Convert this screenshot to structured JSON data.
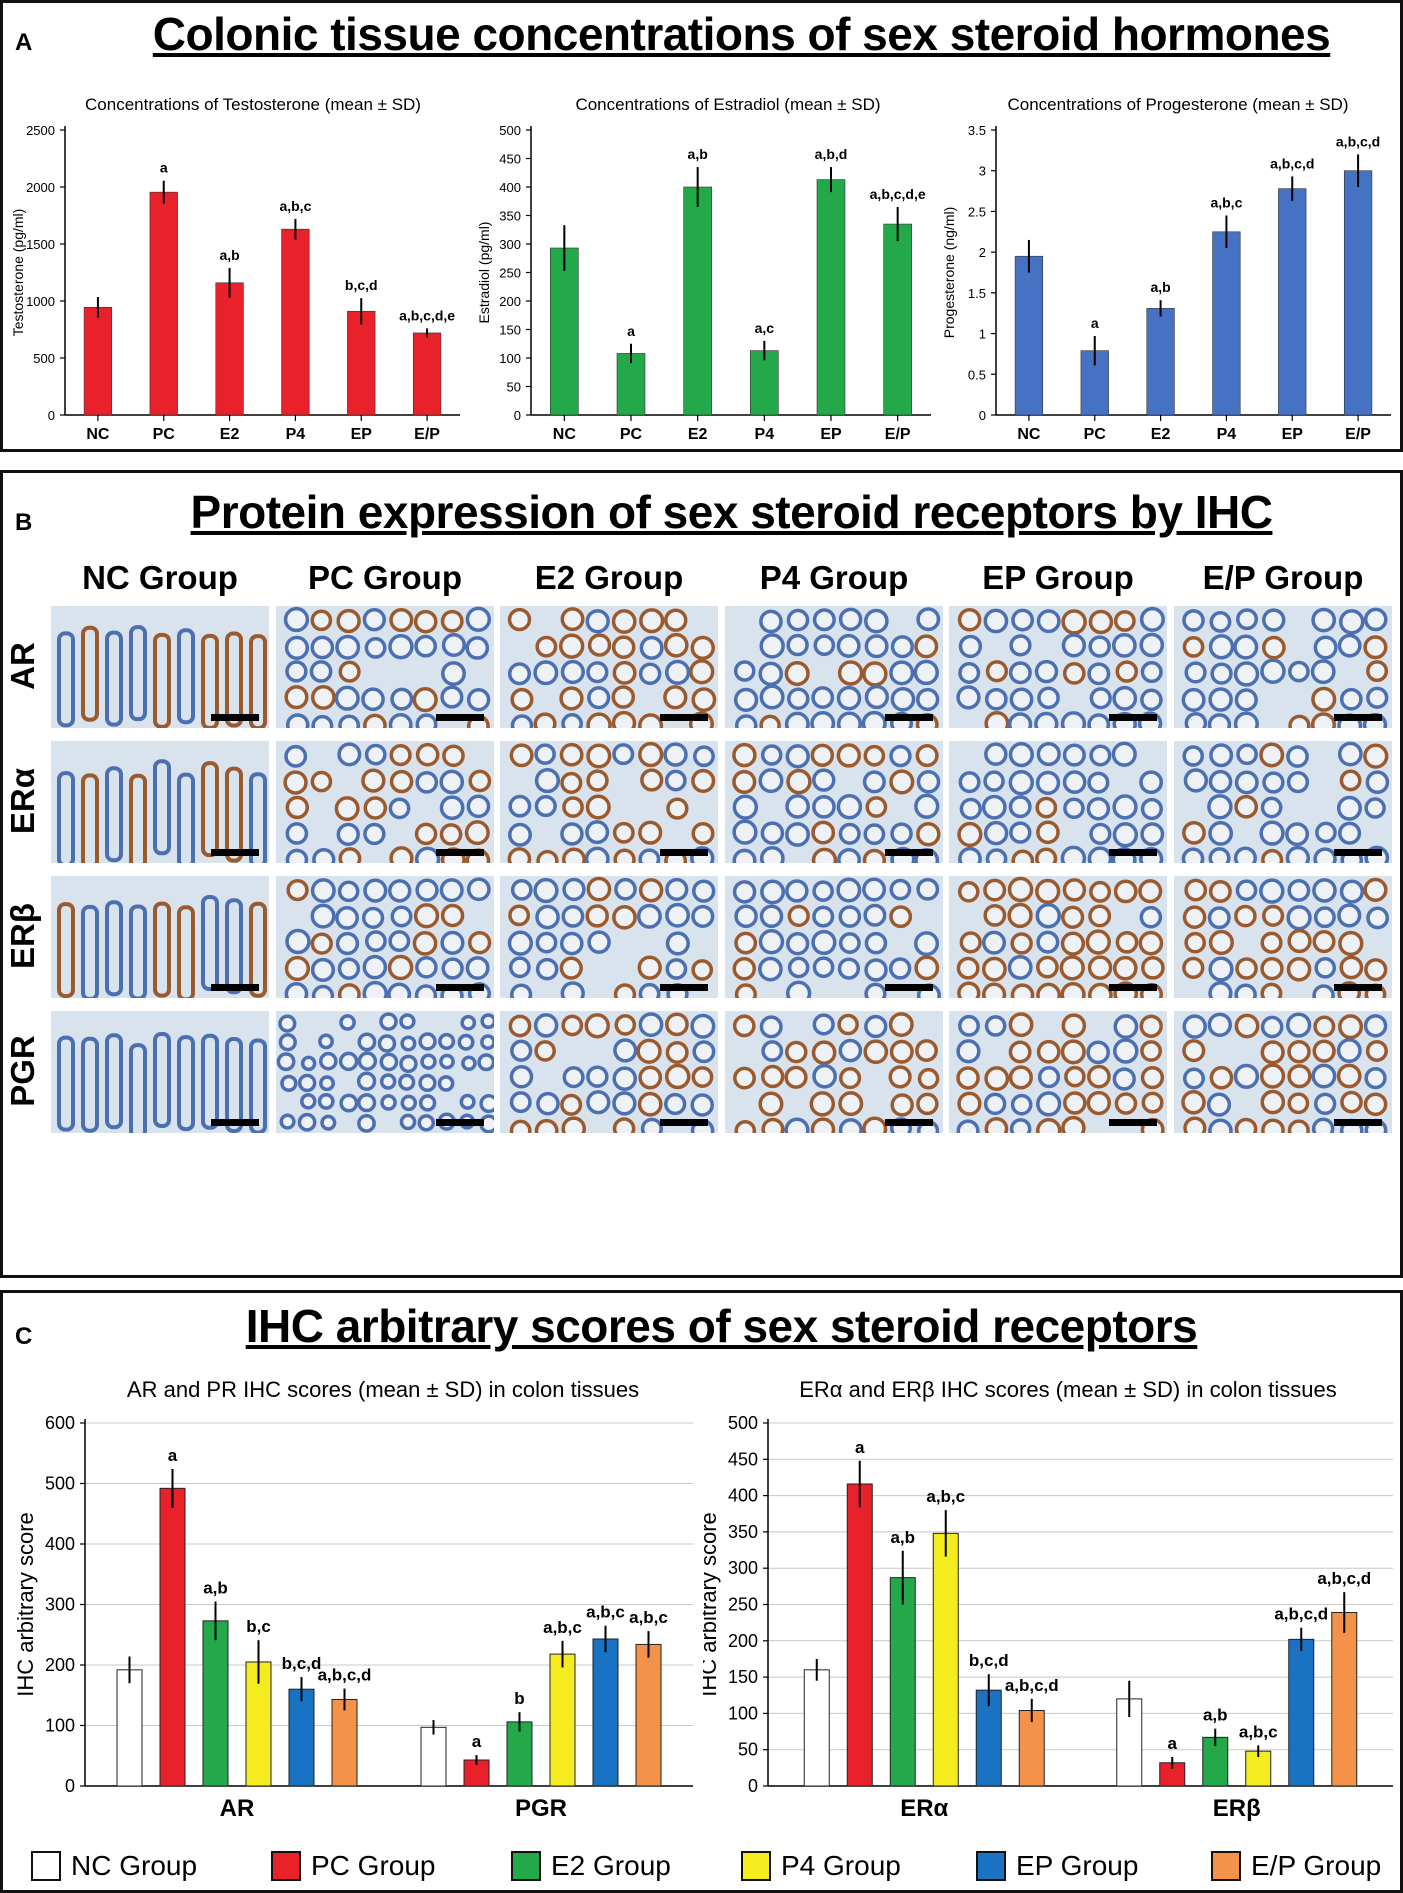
{
  "panels": {
    "a": {
      "letter": "A",
      "title": "Colonic tissue concentrations of sex steroid hormones"
    },
    "b": {
      "letter": "B",
      "title": "Protein expression of sex steroid receptors by IHC"
    },
    "c": {
      "letter": "C",
      "title": "IHC arbitrary scores of sex steroid receptors"
    }
  },
  "ihc": {
    "columns": [
      "NC Group",
      "PC Group",
      "E2 Group",
      "P4 Group",
      "EP Group",
      "E/P Group"
    ],
    "rows": [
      "AR",
      "ERα",
      "ERβ",
      "PGR"
    ]
  },
  "colors": {
    "testosterone": "#e8212b",
    "estradiol": "#23a84a",
    "progesterone": "#4672c4",
    "groups": [
      "#ffffff",
      "#e8212b",
      "#23a84a",
      "#f5ec1f",
      "#1a72c2",
      "#f5924a"
    ],
    "stain_blue": "#4b6fb0",
    "stain_brown": "#9b5a2e",
    "stain_bg": "#d8e3ee"
  },
  "chart_data": [
    {
      "id": "testosterone",
      "type": "bar",
      "title": "Concentrations of Testosterone (mean ± SD)",
      "ylabel": "Testosterone (pg/ml)",
      "categories": [
        "NC",
        "PC",
        "E2",
        "P4",
        "EP",
        "E/P"
      ],
      "values": [
        945,
        1955,
        1160,
        1630,
        910,
        720
      ],
      "errors": [
        90,
        100,
        130,
        90,
        115,
        40
      ],
      "annotations": [
        "",
        "a",
        "a,b",
        "a,b,c",
        "b,c,d",
        "a,b,c,d,e"
      ],
      "ylim": [
        0,
        2500
      ],
      "yticks": [
        "0",
        "500",
        "1000",
        "1500",
        "2000",
        "2500"
      ],
      "ytick_values": [
        0,
        500,
        1000,
        1500,
        2000,
        2500
      ]
    },
    {
      "id": "estradiol",
      "type": "bar",
      "title": "Concentrations of Estradiol  (mean ± SD)",
      "ylabel": "Estradiol (pg/ml)",
      "categories": [
        "NC",
        "PC",
        "E2",
        "P4",
        "EP",
        "E/P"
      ],
      "values": [
        293,
        108,
        400,
        113,
        413,
        335
      ],
      "errors": [
        40,
        17,
        35,
        17,
        22,
        30
      ],
      "annotations": [
        "",
        "a",
        "a,b",
        "a,c",
        "a,b,d",
        "a,b,c,d,e"
      ],
      "ylim": [
        0,
        500
      ],
      "yticks": [
        "0",
        "50",
        "100",
        "150",
        "200",
        "250",
        "300",
        "350",
        "400",
        "450",
        "500"
      ],
      "ytick_values": [
        0,
        50,
        100,
        150,
        200,
        250,
        300,
        350,
        400,
        450,
        500
      ]
    },
    {
      "id": "progesterone",
      "type": "bar",
      "title": "Concentrations of Progesterone (mean ± SD)",
      "ylabel": "Progesterone (ng/ml)",
      "categories": [
        "NC",
        "PC",
        "E2",
        "P4",
        "EP",
        "E/P"
      ],
      "values": [
        1.95,
        0.79,
        1.31,
        2.25,
        2.78,
        3.0
      ],
      "errors": [
        0.2,
        0.18,
        0.1,
        0.2,
        0.15,
        0.2
      ],
      "annotations": [
        "",
        "a",
        "a,b",
        "a,b,c",
        "a,b,c,d",
        "a,b,c,d"
      ],
      "ylim": [
        0,
        3.5
      ],
      "yticks": [
        "0",
        "0.5",
        "1",
        "1.5",
        "2",
        "2.5",
        "3",
        "3.5"
      ],
      "ytick_values": [
        0,
        0.5,
        1,
        1.5,
        2,
        2.5,
        3,
        3.5
      ]
    },
    {
      "id": "ar_pgr",
      "type": "bar",
      "title": "AR and PR IHC scores (mean ± SD) in colon tissues",
      "ylabel": "IHC arbitrary score",
      "categories": [
        "AR",
        "PGR"
      ],
      "series": [
        {
          "name": "NC Group",
          "values": [
            192,
            97
          ],
          "errors": [
            22,
            12
          ],
          "annotations": [
            "",
            ""
          ]
        },
        {
          "name": "PC Group",
          "values": [
            492,
            43
          ],
          "errors": [
            32,
            8
          ],
          "annotations": [
            "a",
            "a"
          ]
        },
        {
          "name": "E2 Group",
          "values": [
            273,
            106
          ],
          "errors": [
            32,
            16
          ],
          "annotations": [
            "a,b",
            "b"
          ]
        },
        {
          "name": "P4 Group",
          "values": [
            205,
            218
          ],
          "errors": [
            36,
            22
          ],
          "annotations": [
            "b,c",
            "a,b,c"
          ]
        },
        {
          "name": "EP Group",
          "values": [
            160,
            243
          ],
          "errors": [
            20,
            22
          ],
          "annotations": [
            "b,c,d",
            "a,b,c"
          ]
        },
        {
          "name": "E/P Group",
          "values": [
            143,
            234
          ],
          "errors": [
            18,
            22
          ],
          "annotations": [
            "a,b,c,d",
            "a,b,c"
          ]
        }
      ],
      "ylim": [
        0,
        600
      ],
      "yticks": [
        "0",
        "100",
        "200",
        "300",
        "400",
        "500",
        "600"
      ],
      "ytick_values": [
        0,
        100,
        200,
        300,
        400,
        500,
        600
      ]
    },
    {
      "id": "er",
      "type": "bar",
      "title": "ERα and ERβ IHC scores (mean ± SD) in colon tissues",
      "ylabel": "IHC arbitrary score",
      "categories": [
        "ERα",
        "ERβ"
      ],
      "series": [
        {
          "name": "NC Group",
          "values": [
            160,
            120
          ],
          "errors": [
            15,
            25
          ],
          "annotations": [
            "",
            ""
          ]
        },
        {
          "name": "PC Group",
          "values": [
            416,
            32
          ],
          "errors": [
            32,
            8
          ],
          "annotations": [
            "a",
            "a"
          ]
        },
        {
          "name": "E2 Group",
          "values": [
            287,
            67
          ],
          "errors": [
            37,
            12
          ],
          "annotations": [
            "a,b",
            "a,b"
          ]
        },
        {
          "name": "P4 Group",
          "values": [
            348,
            48
          ],
          "errors": [
            32,
            8
          ],
          "annotations": [
            "a,b,c",
            "a,b,c"
          ]
        },
        {
          "name": "EP Group",
          "values": [
            132,
            202
          ],
          "errors": [
            22,
            16
          ],
          "annotations": [
            "b,c,d",
            "a,b,c,d"
          ]
        },
        {
          "name": "E/P Group",
          "values": [
            104,
            239
          ],
          "errors": [
            16,
            28
          ],
          "annotations": [
            "a,b,c,d",
            "a,b,c,d"
          ]
        }
      ],
      "ylim": [
        0,
        500
      ],
      "yticks": [
        "0",
        "50",
        "100",
        "150",
        "200",
        "250",
        "300",
        "350",
        "400",
        "450",
        "500"
      ],
      "ytick_values": [
        0,
        50,
        100,
        150,
        200,
        250,
        300,
        350,
        400,
        450,
        500
      ]
    }
  ],
  "legend": [
    "NC Group",
    "PC Group",
    "E2 Group",
    "P4 Group",
    "EP Group",
    "E/P Group"
  ]
}
